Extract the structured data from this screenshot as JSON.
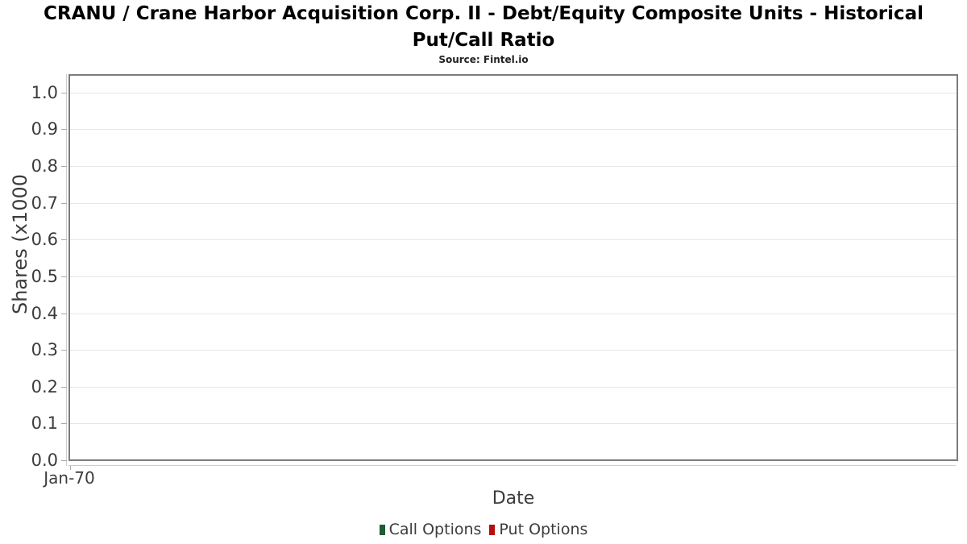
{
  "header": {
    "title": "CRANU / Crane Harbor Acquisition Corp. II - Debt/Equity Composite Units - Historical Put/Call Ratio",
    "subtitle": "Source: Fintel.io"
  },
  "y_axis": {
    "label": "Shares (x1000",
    "ticks": [
      "1.0",
      "0.9",
      "0.8",
      "0.7",
      "0.6",
      "0.5",
      "0.4",
      "0.3",
      "0.2",
      "0.1",
      "0.0"
    ]
  },
  "x_axis": {
    "label": "Date",
    "ticks": [
      "Jan-70"
    ]
  },
  "legend": {
    "items": [
      {
        "label": "Call Options",
        "color": "#1e5c34"
      },
      {
        "label": "Put Options",
        "color": "#b80d0d"
      }
    ]
  },
  "colors": {
    "grid": "#e7e7e7",
    "plot_border": "#7c7c7c",
    "axis_line": "#cccccc",
    "tick_mark": "#a9a9a9",
    "text": "#3c3c3c",
    "title_text": "#000000"
  },
  "chart_data": {
    "type": "line",
    "title": "CRANU / Crane Harbor Acquisition Corp. II - Debt/Equity Composite Units - Historical Put/Call Ratio",
    "subtitle": "Source: Fintel.io",
    "xlabel": "Date",
    "ylabel": "Shares (x1000",
    "x_tick_labels": [
      "Jan-70"
    ],
    "ylim": [
      0.0,
      1.05
    ],
    "y_tick_values": [
      0.0,
      0.1,
      0.2,
      0.3,
      0.4,
      0.5,
      0.6,
      0.7,
      0.8,
      0.9,
      1.0
    ],
    "grid": "horizontal-only",
    "legend_position": "bottom-center",
    "series": [
      {
        "name": "Call Options",
        "color": "#1e5c34",
        "x": [],
        "y": []
      },
      {
        "name": "Put Options",
        "color": "#b80d0d",
        "x": [],
        "y": []
      }
    ]
  }
}
